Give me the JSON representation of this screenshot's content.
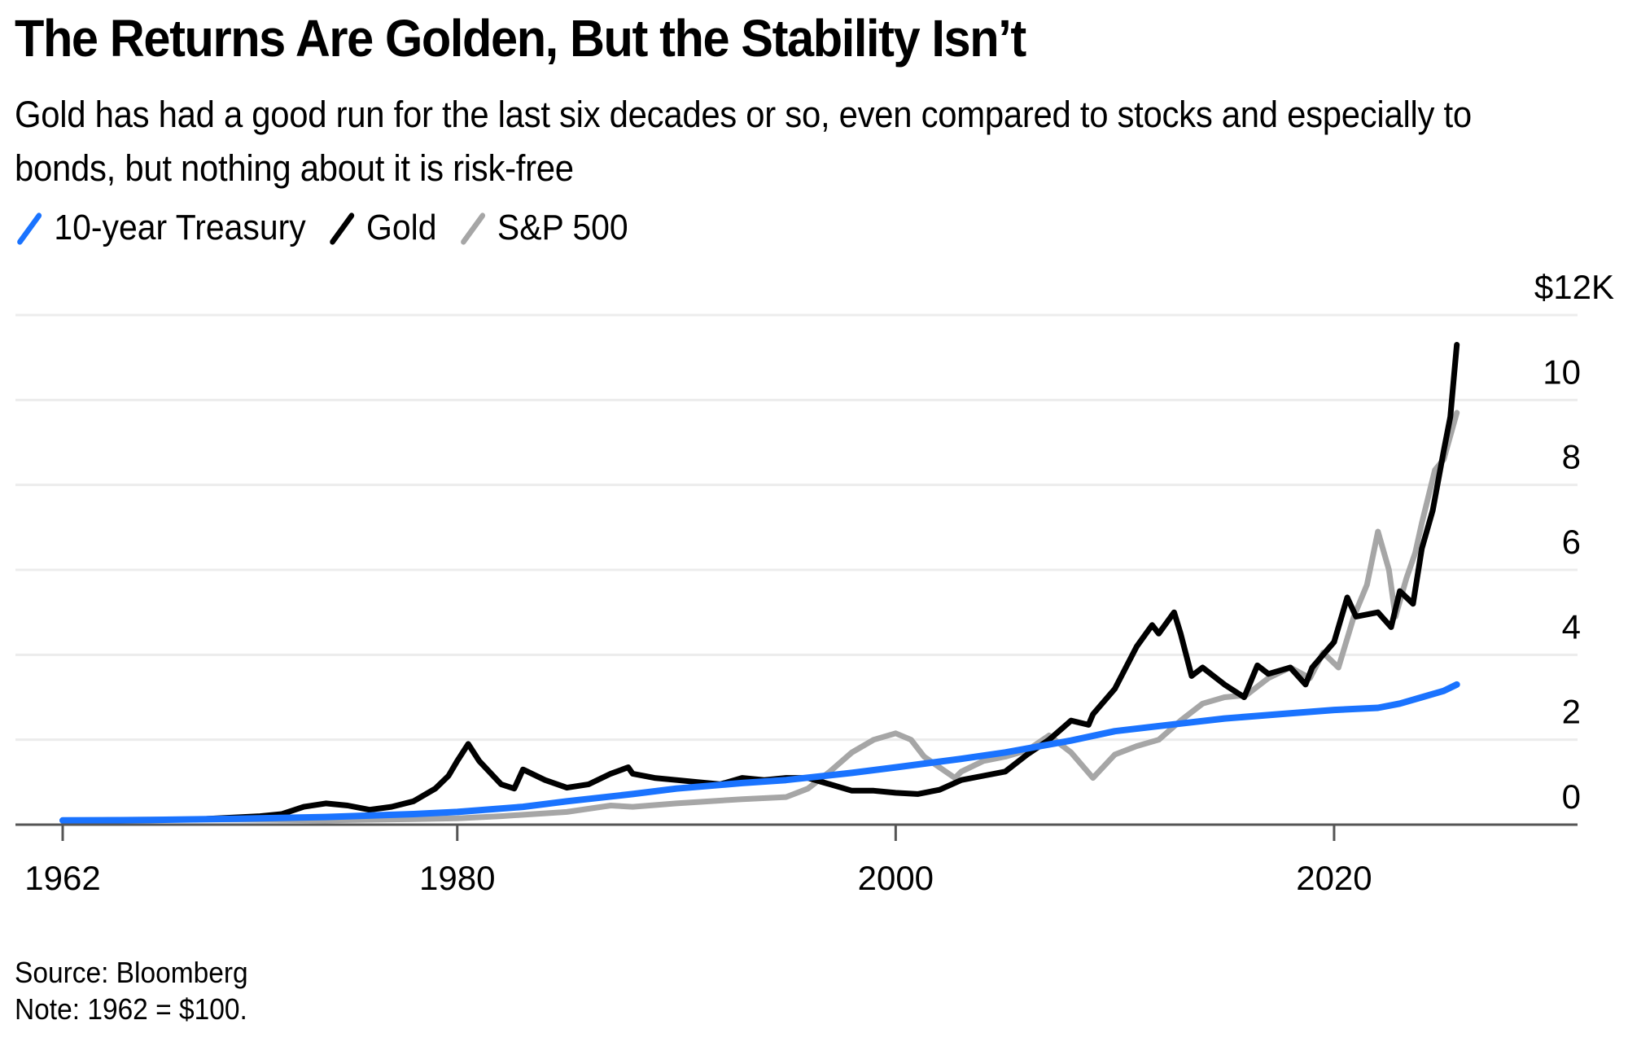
{
  "title": "The Returns Are Golden, But the Stability Isn’t",
  "subtitle": "Gold has had a good run for the last six decades or so, even compared to stocks and especially to bonds, but nothing about it is risk-free",
  "legend": [
    {
      "label": "10-year Treasury",
      "color": "#1a73ff"
    },
    {
      "label": "Gold",
      "color": "#000000"
    },
    {
      "label": "S&P 500",
      "color": "#a6a6a6"
    }
  ],
  "footer": {
    "source": "Source: Bloomberg",
    "note": "Note: 1962 = $100."
  },
  "chart_data": {
    "type": "line",
    "title": "The Returns Are Golden, But the Stability Isn’t",
    "xlabel": "",
    "ylabel": "",
    "y_unit": "$K (growth of $100 invested in 1962)",
    "xlim": [
      1962,
      2030
    ],
    "ylim": [
      0,
      12
    ],
    "x_ticks": [
      1962,
      1980,
      2000,
      2020
    ],
    "x_tick_labels": [
      "1962",
      "1980",
      "2000",
      "2020"
    ],
    "y_ticks": [
      0,
      2,
      4,
      6,
      8,
      10,
      12
    ],
    "y_tick_labels": [
      "0",
      "2",
      "4",
      "6",
      "8",
      "10",
      "$12K"
    ],
    "grid": true,
    "legend_position": "top-left",
    "series": [
      {
        "name": "10-year Treasury",
        "color": "#1a73ff",
        "x": [
          1962,
          1966,
          1970,
          1974,
          1978,
          1980,
          1983,
          1985,
          1988,
          1990,
          1993,
          1995,
          1998,
          2000,
          2003,
          2005,
          2008,
          2010,
          2013,
          2015,
          2018,
          2020,
          2022,
          2023,
          2024,
          2025,
          2025.6
        ],
        "values": [
          0.1,
          0.11,
          0.14,
          0.18,
          0.25,
          0.3,
          0.42,
          0.55,
          0.72,
          0.85,
          0.98,
          1.05,
          1.22,
          1.35,
          1.55,
          1.7,
          1.98,
          2.2,
          2.38,
          2.5,
          2.62,
          2.7,
          2.75,
          2.85,
          3.0,
          3.15,
          3.3
        ]
      },
      {
        "name": "Gold",
        "color": "#000000",
        "x": [
          1962,
          1968,
          1971,
          1972,
          1973,
          1974,
          1975,
          1976,
          1977,
          1978,
          1979,
          1979.6,
          1980,
          1980.5,
          1981,
          1982,
          1982.6,
          1983,
          1984,
          1985,
          1986,
          1987,
          1987.8,
          1988,
          1989,
          1990,
          1991,
          1992,
          1993,
          1994,
          1995,
          1996,
          1997,
          1998,
          1999,
          2000,
          2001,
          2002,
          2003,
          2004,
          2005,
          2006,
          2007,
          2008,
          2008.8,
          2009,
          2010,
          2011,
          2011.7,
          2012,
          2012.7,
          2013,
          2013.5,
          2014,
          2015,
          2015.9,
          2016.5,
          2017,
          2018,
          2018.7,
          2019,
          2020,
          2020.6,
          2021,
          2022,
          2022.6,
          2023,
          2023.6,
          2024,
          2024.5,
          2025,
          2025.3,
          2025.6
        ],
        "values": [
          0.1,
          0.12,
          0.2,
          0.25,
          0.42,
          0.5,
          0.45,
          0.35,
          0.42,
          0.55,
          0.85,
          1.15,
          1.5,
          1.9,
          1.5,
          0.95,
          0.85,
          1.3,
          1.05,
          0.87,
          0.95,
          1.2,
          1.35,
          1.2,
          1.1,
          1.05,
          1.0,
          0.95,
          1.1,
          1.05,
          1.1,
          1.1,
          0.95,
          0.8,
          0.8,
          0.75,
          0.72,
          0.82,
          1.05,
          1.15,
          1.25,
          1.65,
          2.0,
          2.45,
          2.35,
          2.6,
          3.2,
          4.2,
          4.7,
          4.5,
          5.0,
          4.5,
          3.5,
          3.7,
          3.3,
          3.0,
          3.75,
          3.55,
          3.7,
          3.3,
          3.7,
          4.3,
          5.35,
          4.9,
          5.0,
          4.65,
          5.5,
          5.2,
          6.5,
          7.4,
          8.8,
          9.6,
          11.3
        ]
      },
      {
        "name": "S&P 500",
        "color": "#a6a6a6",
        "x": [
          1962,
          1966,
          1970,
          1974,
          1978,
          1980,
          1982,
          1985,
          1987,
          1988,
          1990,
          1993,
          1995,
          1996,
          1997,
          1998,
          1999,
          2000,
          2000.7,
          2001.3,
          2002,
          2002.7,
          2003,
          2004,
          2005,
          2006,
          2007,
          2008,
          2009,
          2010,
          2011,
          2012,
          2013,
          2014,
          2015,
          2016,
          2017,
          2018,
          2018.9,
          2019.5,
          2020.2,
          2020.9,
          2021.5,
          2022,
          2022.5,
          2022.8,
          2023.3,
          2023.7,
          2024,
          2024.6,
          2025,
          2025.6
        ],
        "values": [
          0.1,
          0.12,
          0.12,
          0.1,
          0.13,
          0.15,
          0.2,
          0.3,
          0.45,
          0.42,
          0.5,
          0.6,
          0.65,
          0.85,
          1.25,
          1.7,
          2.0,
          2.15,
          2.0,
          1.6,
          1.35,
          1.1,
          1.25,
          1.5,
          1.6,
          1.75,
          2.1,
          1.7,
          1.1,
          1.65,
          1.85,
          2.0,
          2.45,
          2.85,
          3.0,
          3.05,
          3.45,
          3.7,
          3.45,
          4.05,
          3.7,
          4.9,
          5.65,
          6.9,
          6.0,
          4.9,
          5.8,
          6.4,
          7.1,
          8.35,
          8.6,
          9.7
        ]
      }
    ]
  }
}
